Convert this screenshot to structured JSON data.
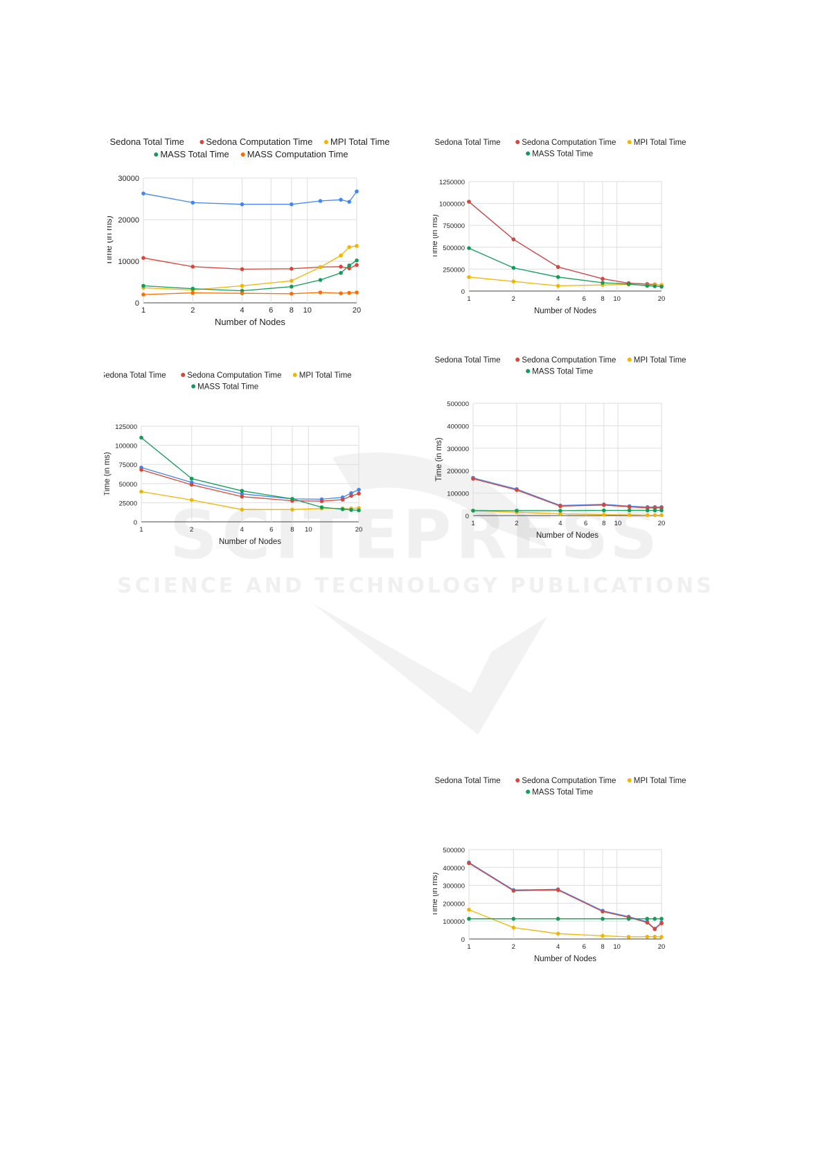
{
  "colors": {
    "blue": "#4285f4",
    "red": "#db4437",
    "yellow": "#f4b400",
    "green": "#0f9d58",
    "orange": "#ff6d01",
    "purple": "#8e4b8e"
  },
  "watermark": {
    "title": "SCITEPRESS",
    "subtitle": "SCIENCE AND TECHNOLOGY PUBLICATIONS"
  },
  "chart_data": [
    {
      "type": "line",
      "xscale": "log",
      "x_ticks": [
        "1",
        "2",
        "4",
        "6",
        "8",
        "10",
        "20"
      ],
      "xlabel": "Number of Nodes",
      "ylabel": "Time (in ms)",
      "ylim": [
        0,
        30000
      ],
      "y_ticks": [
        "0",
        "10000",
        "20000",
        "30000"
      ],
      "grid": true,
      "legend": "top",
      "series": [
        {
          "name": "Sedona Total Time",
          "color": "#4285f4",
          "x": [
            1,
            2,
            4,
            8,
            12,
            16,
            18,
            20
          ],
          "y": [
            26300,
            24100,
            23700,
            23700,
            24500,
            24800,
            24300,
            26800
          ]
        },
        {
          "name": "Sedona Computation Time",
          "color": "#db4437",
          "x": [
            1,
            2,
            4,
            8,
            12,
            16,
            18,
            20
          ],
          "y": [
            10800,
            8700,
            8100,
            8200,
            8600,
            8700,
            8300,
            9100
          ]
        },
        {
          "name": "MPI Total Time",
          "color": "#f4b400",
          "x": [
            1,
            2,
            4,
            8,
            12,
            16,
            18,
            20
          ],
          "y": [
            3600,
            3100,
            4100,
            5300,
            8600,
            11400,
            13400,
            13700
          ]
        },
        {
          "name": "MASS Total Time",
          "color": "#0f9d58",
          "x": [
            1,
            2,
            4,
            8,
            12,
            16,
            18,
            20
          ],
          "y": [
            4100,
            3400,
            2900,
            3900,
            5500,
            7200,
            9000,
            10200
          ]
        },
        {
          "name": "MASS Computation Time",
          "color": "#ff6d01",
          "x": [
            1,
            2,
            4,
            8,
            12,
            16,
            18,
            20
          ],
          "y": [
            2000,
            2400,
            2300,
            2200,
            2500,
            2300,
            2400,
            2500
          ]
        }
      ]
    },
    {
      "type": "line",
      "xscale": "log",
      "x_ticks": [
        "1",
        "2",
        "4",
        "6",
        "8",
        "10",
        "20"
      ],
      "xlabel": "Number of Nodes",
      "ylabel": "Time (in ms)",
      "ylim": [
        0,
        1250000
      ],
      "y_ticks": [
        "0",
        "250000",
        "500000",
        "750000",
        "1000000",
        "1250000"
      ],
      "grid": true,
      "legend": "top",
      "series": [
        {
          "name": "Sedona Total Time",
          "color": "#4285f4",
          "x": [
            1,
            2,
            4,
            8,
            12,
            16,
            18,
            20
          ],
          "y": [
            1020000,
            590000,
            275000,
            140000,
            90000,
            80000,
            75000,
            65000
          ]
        },
        {
          "name": "Sedona Computation Time",
          "color": "#db4437",
          "x": [
            1,
            2,
            4,
            8,
            12,
            16,
            18,
            20
          ],
          "y": [
            1020000,
            590000,
            275000,
            140000,
            90000,
            80000,
            75000,
            65000
          ]
        },
        {
          "name": "MPI Total Time",
          "color": "#f4b400",
          "x": [
            1,
            2,
            4,
            8,
            12,
            16,
            18,
            20
          ],
          "y": [
            160000,
            110000,
            60000,
            70000,
            75000,
            65000,
            70000,
            70000
          ]
        },
        {
          "name": "MASS Total Time",
          "color": "#0f9d58",
          "x": [
            1,
            2,
            4,
            8,
            12,
            16,
            18,
            20
          ],
          "y": [
            490000,
            265000,
            160000,
            95000,
            80000,
            60000,
            55000,
            50000
          ]
        }
      ]
    },
    {
      "type": "line",
      "xscale": "log",
      "x_ticks": [
        "1",
        "2",
        "4",
        "6",
        "8",
        "10",
        "20"
      ],
      "xlabel": "Number of Nodes",
      "ylabel": "Time (in ms)",
      "ylim": [
        0,
        125000
      ],
      "y_ticks": [
        "0",
        "25000",
        "50000",
        "75000",
        "100000",
        "125000"
      ],
      "grid": true,
      "legend": "top",
      "series": [
        {
          "name": "Sedona Total Time",
          "color": "#4285f4",
          "x": [
            1,
            2,
            4,
            8,
            12,
            16,
            18,
            20
          ],
          "y": [
            71000,
            51500,
            36500,
            30000,
            29500,
            32000,
            37500,
            42000
          ]
        },
        {
          "name": "Sedona Computation Time",
          "color": "#db4437",
          "x": [
            1,
            2,
            4,
            8,
            12,
            16,
            18,
            20
          ],
          "y": [
            68000,
            48500,
            33000,
            27500,
            27000,
            29000,
            34000,
            37000
          ]
        },
        {
          "name": "MPI Total Time",
          "color": "#f4b400",
          "x": [
            1,
            2,
            4,
            8,
            12,
            16,
            18,
            20
          ],
          "y": [
            39500,
            28500,
            16000,
            16000,
            17500,
            17500,
            17500,
            18000
          ]
        },
        {
          "name": "MASS Total Time",
          "color": "#0f9d58",
          "x": [
            1,
            2,
            4,
            8,
            12,
            16,
            18,
            20
          ],
          "y": [
            110000,
            56500,
            40500,
            30000,
            19000,
            16500,
            15500,
            15000
          ]
        }
      ]
    },
    {
      "type": "line",
      "xscale": "log",
      "x_ticks": [
        "1",
        "2",
        "4",
        "6",
        "8",
        "10",
        "20"
      ],
      "xlabel": "Number of Nodes",
      "ylabel": "Time (in ms)",
      "ylim": [
        0,
        500000
      ],
      "y_ticks": [
        "0",
        "100000",
        "200000",
        "300000",
        "400000",
        "500000"
      ],
      "grid": true,
      "legend": "top",
      "series": [
        {
          "name": "Sedona Total Time",
          "color": "#4285f4",
          "x": [
            1,
            2,
            4,
            8,
            12,
            16,
            18,
            20
          ],
          "y": [
            168000,
            118000,
            45000,
            50000,
            42000,
            38000,
            38000,
            38000
          ]
        },
        {
          "name": "Sedona Computation Time",
          "color": "#db4437",
          "x": [
            1,
            2,
            4,
            8,
            12,
            16,
            18,
            20
          ],
          "y": [
            164000,
            114000,
            42000,
            47000,
            39000,
            34000,
            34000,
            34000
          ]
        },
        {
          "name": "MPI Total Time",
          "color": "#f4b400",
          "x": [
            1,
            2,
            4,
            8,
            12,
            16,
            18,
            20
          ],
          "y": [
            22000,
            15000,
            8000,
            4000,
            3000,
            2000,
            2000,
            2000
          ]
        },
        {
          "name": "MASS Total Time",
          "color": "#0f9d58",
          "x": [
            1,
            2,
            4,
            8,
            12,
            16,
            18,
            20
          ],
          "y": [
            22000,
            22000,
            22000,
            23000,
            23000,
            23000,
            23000,
            23000
          ]
        }
      ]
    },
    {
      "type": "line",
      "xscale": "log",
      "x_ticks": [
        "1",
        "2",
        "4",
        "6",
        "8",
        "10",
        "20"
      ],
      "xlabel": "Number of Nodes",
      "ylabel": "Time (in ms)",
      "ylim": [
        0,
        500000
      ],
      "y_ticks": [
        "0",
        "100000",
        "200000",
        "300000",
        "400000",
        "500000"
      ],
      "grid": true,
      "legend": "top",
      "series": [
        {
          "name": "Sedona Total Time",
          "color": "#4285f4",
          "x": [
            1,
            2,
            4,
            8,
            12,
            16,
            18,
            20
          ],
          "y": [
            428000,
            274000,
            278000,
            158000,
            125000,
            96000,
            58000,
            92000
          ]
        },
        {
          "name": "Sedona Computation Time",
          "color": "#db4437",
          "x": [
            1,
            2,
            4,
            8,
            12,
            16,
            18,
            20
          ],
          "y": [
            424000,
            270000,
            274000,
            154000,
            121000,
            92000,
            55000,
            88000
          ]
        },
        {
          "name": "MPI Total Time",
          "color": "#f4b400",
          "x": [
            1,
            2,
            4,
            8,
            12,
            16,
            18,
            20
          ],
          "y": [
            164000,
            64000,
            30000,
            18000,
            12000,
            13000,
            13000,
            12000
          ]
        },
        {
          "name": "MASS Total Time",
          "color": "#0f9d58",
          "x": [
            1,
            2,
            4,
            8,
            12,
            16,
            18,
            20
          ],
          "y": [
            113000,
            113000,
            113000,
            113000,
            113000,
            113000,
            113000,
            113000
          ]
        }
      ]
    }
  ]
}
